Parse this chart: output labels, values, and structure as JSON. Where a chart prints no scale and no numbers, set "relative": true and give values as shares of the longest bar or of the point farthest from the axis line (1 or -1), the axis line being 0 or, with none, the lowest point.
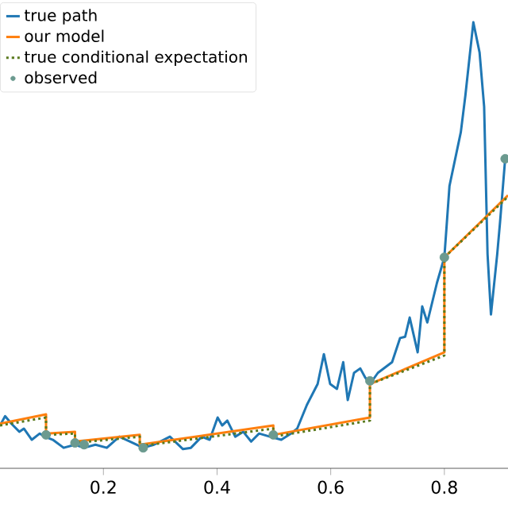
{
  "chart_data": {
    "type": "line",
    "relative": true,
    "xlim": [
      0.018,
      0.912
    ],
    "xticks": [
      0.2,
      0.4,
      0.6,
      0.8
    ],
    "tick_labels": "x",
    "legend": "top left",
    "grid": false,
    "series": [
      {
        "name": "true path",
        "color": "#1f77b4",
        "line_style": "solid",
        "x": [
          0.018,
          0.027,
          0.038,
          0.052,
          0.06,
          0.074,
          0.088,
          0.097,
          0.111,
          0.13,
          0.15,
          0.166,
          0.186,
          0.206,
          0.228,
          0.247,
          0.27,
          0.289,
          0.317,
          0.34,
          0.354,
          0.373,
          0.387,
          0.401,
          0.409,
          0.418,
          0.432,
          0.446,
          0.46,
          0.474,
          0.493,
          0.513,
          0.53,
          0.541,
          0.558,
          0.577,
          0.588,
          0.599,
          0.611,
          0.622,
          0.63,
          0.641,
          0.652,
          0.661,
          0.669,
          0.683,
          0.708,
          0.722,
          0.731,
          0.739,
          0.753,
          0.761,
          0.77,
          0.787,
          0.8,
          0.809,
          0.829,
          0.837,
          0.851,
          0.862,
          0.87,
          0.876,
          0.882,
          0.893,
          0.898,
          0.907
        ],
        "values": [
          0.096,
          0.117,
          0.1,
          0.082,
          0.089,
          0.064,
          0.078,
          0.071,
          0.064,
          0.046,
          0.053,
          0.046,
          0.053,
          0.046,
          0.071,
          0.06,
          0.046,
          0.053,
          0.071,
          0.043,
          0.046,
          0.071,
          0.064,
          0.114,
          0.096,
          0.107,
          0.071,
          0.082,
          0.06,
          0.078,
          0.071,
          0.064,
          0.078,
          0.089,
          0.142,
          0.189,
          0.256,
          0.189,
          0.178,
          0.238,
          0.153,
          0.214,
          0.224,
          0.203,
          0.189,
          0.214,
          0.238,
          0.292,
          0.295,
          0.338,
          0.26,
          0.363,
          0.327,
          0.416,
          0.473,
          0.633,
          0.754,
          0.836,
          1.0,
          0.932,
          0.811,
          0.48,
          0.345,
          0.48,
          0.552,
          0.694
        ]
      },
      {
        "name": "our model",
        "color": "#ff7f0e",
        "line_style": "solid",
        "x": [
          0.018,
          0.099,
          0.099,
          0.15,
          0.15,
          0.264,
          0.264,
          0.499,
          0.499,
          0.669,
          0.669,
          0.8,
          0.8,
          0.912
        ],
        "values": [
          0.1,
          0.121,
          0.078,
          0.082,
          0.06,
          0.075,
          0.053,
          0.096,
          0.075,
          0.114,
          0.189,
          0.26,
          0.473,
          0.612
        ]
      },
      {
        "name": "true conditional expectation",
        "color": "#5a7a1e",
        "line_style": "dotted",
        "x": [
          0.018,
          0.099,
          0.099,
          0.15,
          0.15,
          0.264,
          0.264,
          0.499,
          0.499,
          0.669,
          0.669,
          0.8,
          0.8,
          0.912
        ],
        "values": [
          0.096,
          0.114,
          0.075,
          0.078,
          0.057,
          0.071,
          0.05,
          0.089,
          0.071,
          0.107,
          0.189,
          0.253,
          0.473,
          0.609
        ]
      },
      {
        "name": "observed",
        "color": "#6b9a8f",
        "type": "scatter",
        "marker": "circle",
        "x": [
          0.099,
          0.15,
          0.166,
          0.27,
          0.499,
          0.669,
          0.8,
          0.907
        ],
        "values": [
          0.075,
          0.057,
          0.053,
          0.046,
          0.075,
          0.196,
          0.473,
          0.694
        ]
      }
    ]
  }
}
